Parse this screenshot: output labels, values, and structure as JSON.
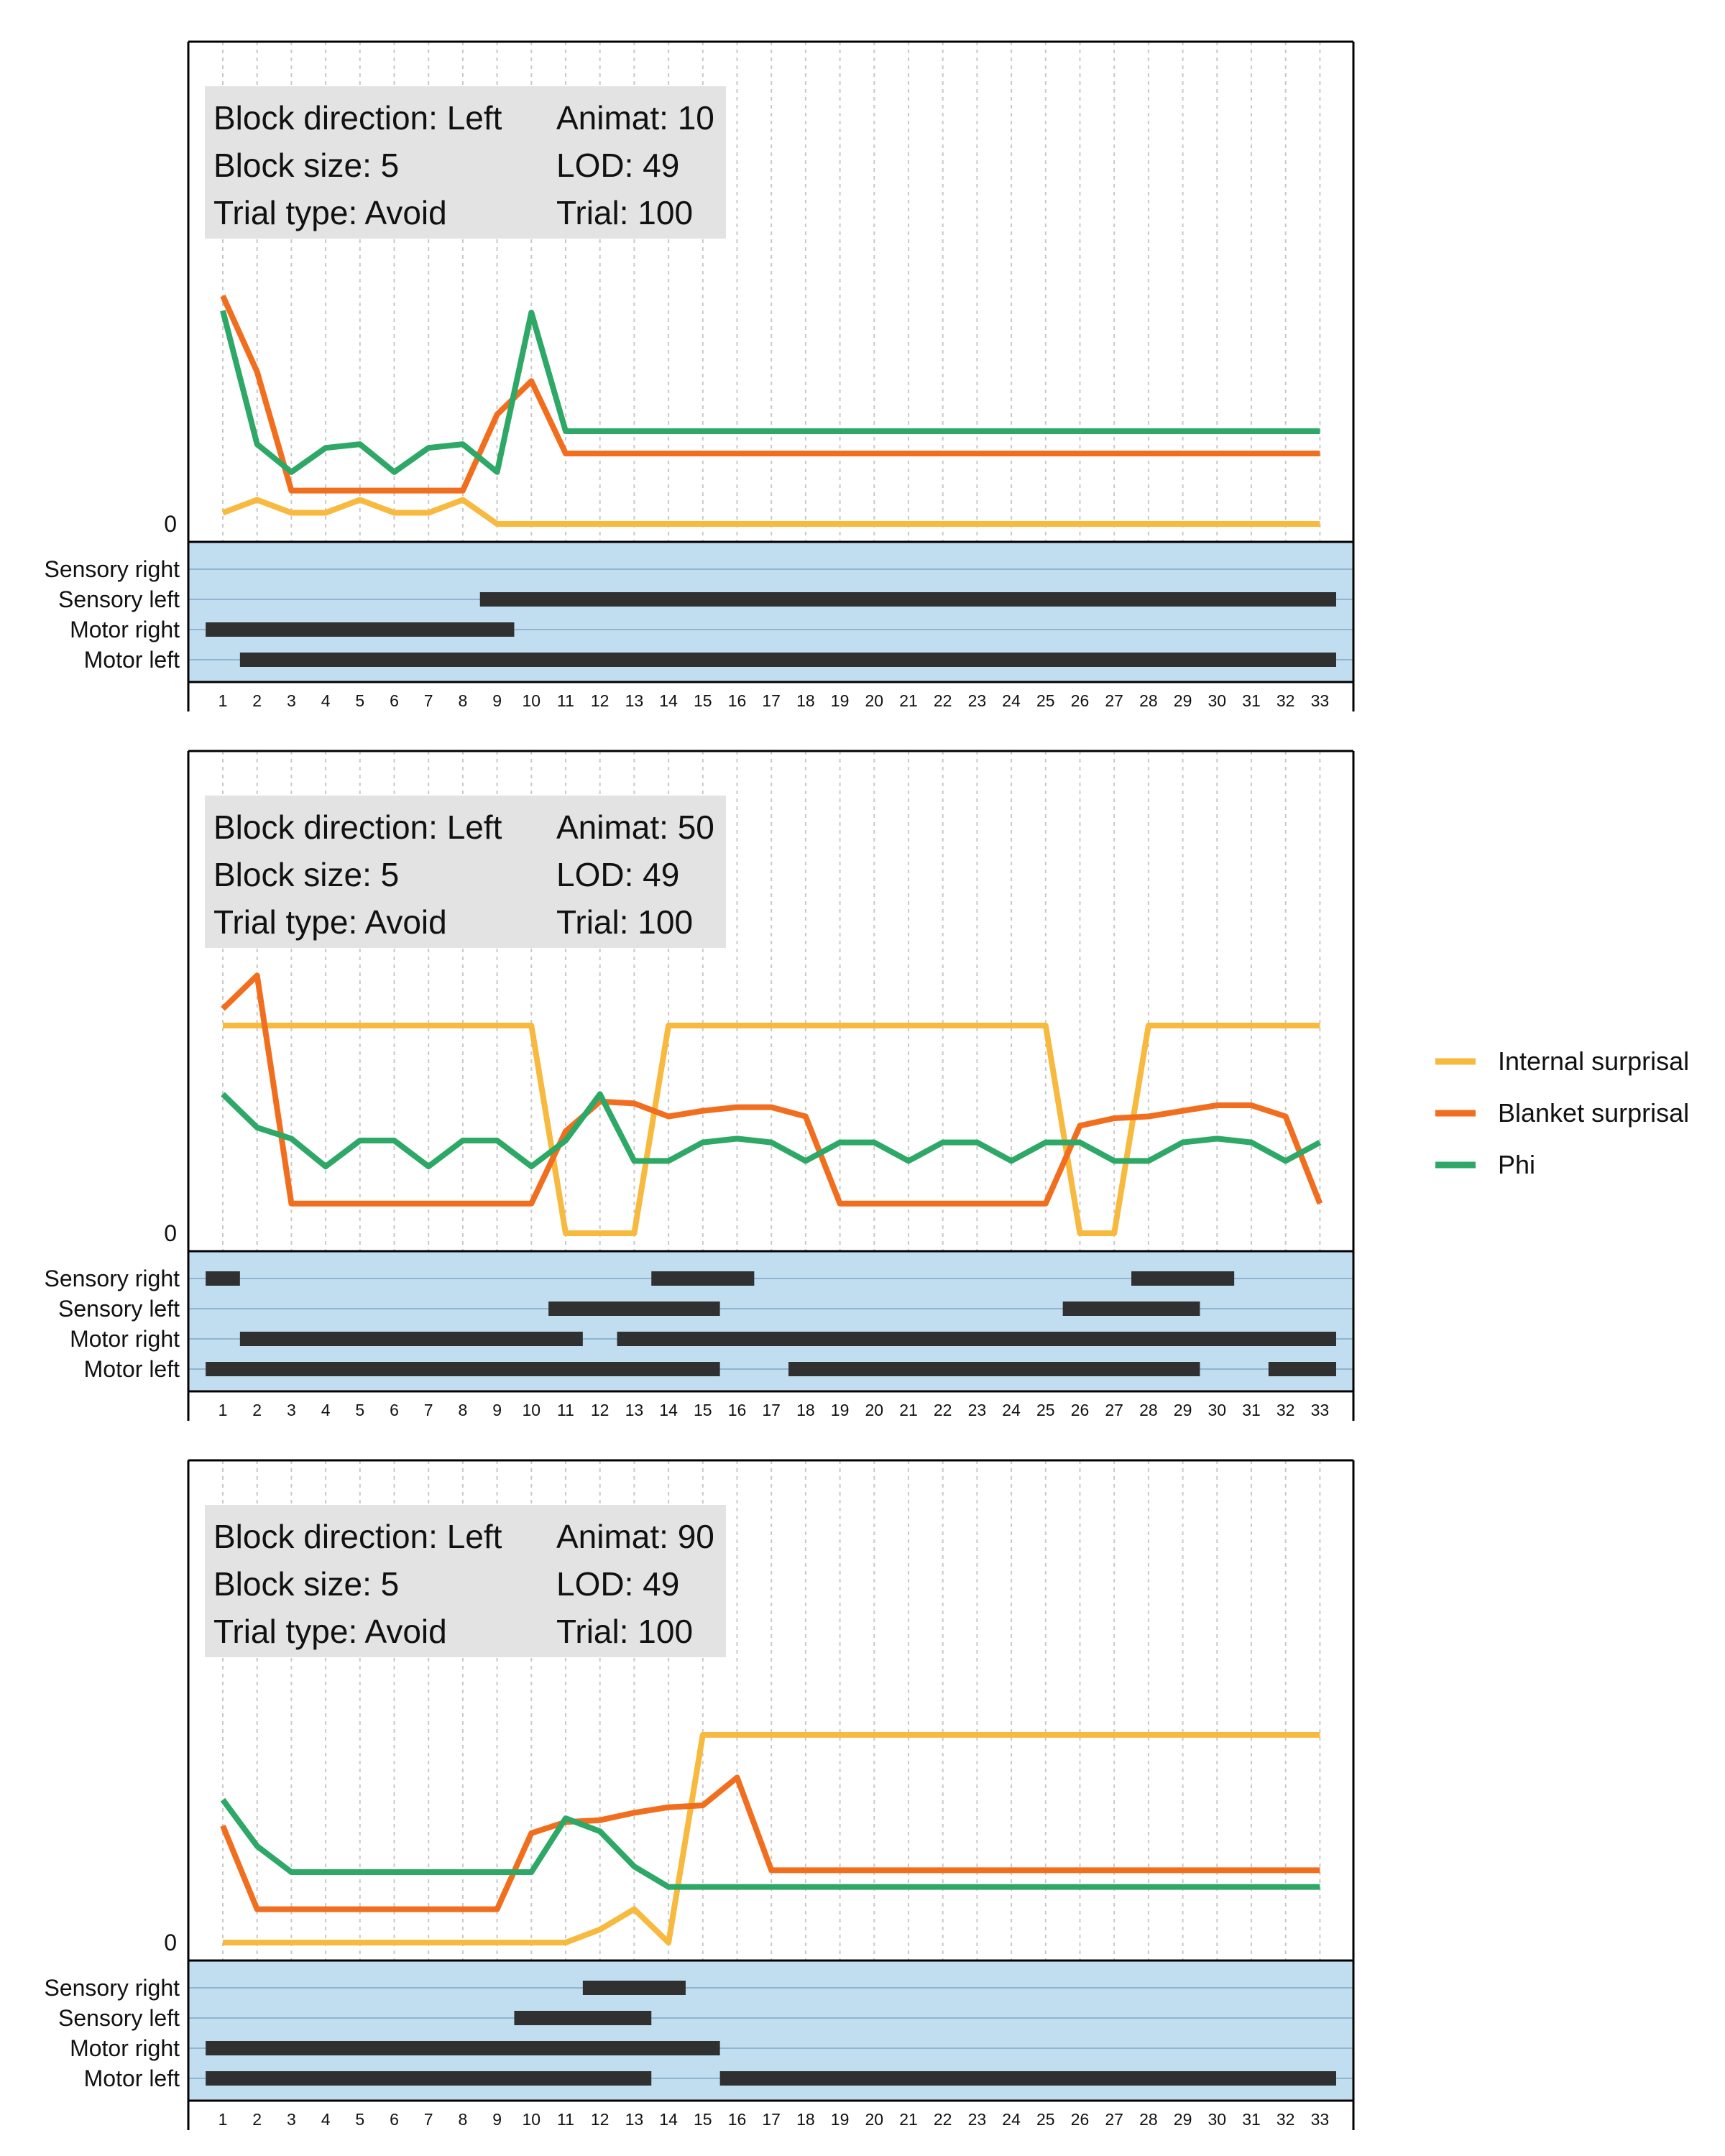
{
  "colors": {
    "internal": "#F7B93E",
    "blanket": "#F26E1F",
    "phi": "#2EA867",
    "raster_bg": "#C1DDF0",
    "bar": "#303030",
    "info_bg": "#E3E3E3"
  },
  "legend": [
    {
      "label": "Internal surprisal",
      "color": "#F7B93E"
    },
    {
      "label": "Blanket surprisal",
      "color": "#F26E1F"
    },
    {
      "label": "Phi",
      "color": "#2EA867"
    }
  ],
  "chart_data": [
    {
      "type": "line",
      "x": [
        1,
        2,
        3,
        4,
        5,
        6,
        7,
        8,
        9,
        10,
        11,
        12,
        13,
        14,
        15,
        16,
        17,
        18,
        19,
        20,
        21,
        22,
        23,
        24,
        25,
        26,
        27,
        28,
        29,
        30,
        31,
        32,
        33
      ],
      "ytick": "0",
      "ylim": [
        -0.5,
        24.5
      ],
      "info": {
        "left": [
          "Block direction: Left",
          "Block size: 5",
          "Trial type: Avoid"
        ],
        "right": [
          "Animat: 10",
          "LOD: 49",
          "Trial: 100"
        ]
      },
      "series": [
        {
          "name": "Internal surprisal",
          "color": "#F7B93E",
          "values": [
            0.6,
            1.3,
            0.6,
            0.6,
            1.3,
            0.6,
            0.6,
            1.3,
            0,
            0,
            0,
            0,
            0,
            0,
            0,
            0,
            0,
            0,
            0,
            0,
            0,
            0,
            0,
            0,
            0,
            0,
            0,
            0,
            0,
            0,
            0,
            0,
            0
          ]
        },
        {
          "name": "Blanket surprisal",
          "color": "#F26E1F",
          "values": [
            12.3,
            8.2,
            1.8,
            1.8,
            1.8,
            1.8,
            1.8,
            1.8,
            5.9,
            7.7,
            3.8,
            3.8,
            3.8,
            3.8,
            3.8,
            3.8,
            3.8,
            3.8,
            3.8,
            3.8,
            3.8,
            3.8,
            3.8,
            3.8,
            3.8,
            3.8,
            3.8,
            3.8,
            3.8,
            3.8,
            3.8,
            3.8,
            3.8
          ]
        },
        {
          "name": "Phi",
          "color": "#2EA867",
          "values": [
            11.5,
            4.3,
            2.8,
            4.1,
            4.3,
            2.8,
            4.1,
            4.3,
            2.8,
            11.4,
            5,
            5,
            5,
            5,
            5,
            5,
            5,
            5,
            5,
            5,
            5,
            5,
            5,
            5,
            5,
            5,
            5,
            5,
            5,
            5,
            5,
            5,
            5
          ]
        }
      ],
      "raster": {
        "rows": [
          "Sensory right",
          "Sensory left",
          "Motor right",
          "Motor left"
        ],
        "bars": [
          [],
          [
            [
              9,
              33
            ]
          ],
          [
            [
              1,
              9
            ]
          ],
          [
            [
              2,
              33
            ]
          ]
        ]
      }
    },
    {
      "type": "line",
      "x": [
        1,
        2,
        3,
        4,
        5,
        6,
        7,
        8,
        9,
        10,
        11,
        12,
        13,
        14,
        15,
        16,
        17,
        18,
        19,
        20,
        21,
        22,
        23,
        24,
        25,
        26,
        27,
        28,
        29,
        30,
        31,
        32,
        33
      ],
      "ytick": "0",
      "ylim": [
        -0.5,
        24.5
      ],
      "info": {
        "left": [
          "Block direction: Left",
          "Block size: 5",
          "Trial type: Avoid"
        ],
        "right": [
          "Animat: 50",
          "LOD: 49",
          "Trial: 100"
        ]
      },
      "series": [
        {
          "name": "Internal surprisal",
          "color": "#F7B93E",
          "values": [
            11.2,
            11.2,
            11.2,
            11.2,
            11.2,
            11.2,
            11.2,
            11.2,
            11.2,
            11.2,
            0,
            0,
            0,
            11.2,
            11.2,
            11.2,
            11.2,
            11.2,
            11.2,
            11.2,
            11.2,
            11.2,
            11.2,
            11.2,
            11.2,
            0,
            0,
            11.2,
            11.2,
            11.2,
            11.2,
            11.2,
            11.2
          ]
        },
        {
          "name": "Blanket surprisal",
          "color": "#F26E1F",
          "values": [
            12.1,
            13.9,
            1.6,
            1.6,
            1.6,
            1.6,
            1.6,
            1.6,
            1.6,
            1.6,
            5.5,
            7.1,
            7.0,
            6.3,
            6.6,
            6.8,
            6.8,
            6.3,
            1.6,
            1.6,
            1.6,
            1.6,
            1.6,
            1.6,
            1.6,
            5.8,
            6.2,
            6.3,
            6.6,
            6.9,
            6.9,
            6.3,
            1.6
          ]
        },
        {
          "name": "Phi",
          "color": "#2EA867",
          "values": [
            7.5,
            5.7,
            5.1,
            3.6,
            5.0,
            5.0,
            3.6,
            5.0,
            5.0,
            3.6,
            5.0,
            7.5,
            3.9,
            3.9,
            4.9,
            5.1,
            4.9,
            3.9,
            4.9,
            4.9,
            3.9,
            4.9,
            4.9,
            3.9,
            4.9,
            4.9,
            3.9,
            3.9,
            4.9,
            5.1,
            4.9,
            3.9,
            4.9
          ]
        }
      ],
      "raster": {
        "rows": [
          "Sensory right",
          "Sensory left",
          "Motor right",
          "Motor left"
        ],
        "bars": [
          [
            [
              1,
              1
            ],
            [
              14,
              16
            ],
            [
              28,
              30
            ]
          ],
          [
            [
              11,
              15
            ],
            [
              26,
              29
            ]
          ],
          [
            [
              2,
              11
            ],
            [
              13,
              33
            ]
          ],
          [
            [
              1,
              15
            ],
            [
              18,
              29
            ],
            [
              32,
              33
            ]
          ]
        ]
      }
    },
    {
      "type": "line",
      "x": [
        1,
        2,
        3,
        4,
        5,
        6,
        7,
        8,
        9,
        10,
        11,
        12,
        13,
        14,
        15,
        16,
        17,
        18,
        19,
        20,
        21,
        22,
        23,
        24,
        25,
        26,
        27,
        28,
        29,
        30,
        31,
        32,
        33
      ],
      "ytick": "0",
      "ylim": [
        -0.5,
        24.5
      ],
      "info": {
        "left": [
          "Block direction: Left",
          "Block size: 5",
          "Trial type: Avoid"
        ],
        "right": [
          "Animat: 90",
          "LOD: 49",
          "Trial: 100"
        ]
      },
      "series": [
        {
          "name": "Internal surprisal",
          "color": "#F7B93E",
          "values": [
            0,
            0,
            0,
            0,
            0,
            0,
            0,
            0,
            0,
            0,
            0,
            0.7,
            1.8,
            0,
            11.2,
            11.2,
            11.2,
            11.2,
            11.2,
            11.2,
            11.2,
            11.2,
            11.2,
            11.2,
            11.2,
            11.2,
            11.2,
            11.2,
            11.2,
            11.2,
            11.2,
            11.2,
            11.2
          ]
        },
        {
          "name": "Blanket surprisal",
          "color": "#F26E1F",
          "values": [
            6.3,
            1.8,
            1.8,
            1.8,
            1.8,
            1.8,
            1.8,
            1.8,
            1.8,
            5.9,
            6.5,
            6.6,
            7.0,
            7.3,
            7.4,
            8.9,
            3.9,
            3.9,
            3.9,
            3.9,
            3.9,
            3.9,
            3.9,
            3.9,
            3.9,
            3.9,
            3.9,
            3.9,
            3.9,
            3.9,
            3.9,
            3.9,
            3.9
          ]
        },
        {
          "name": "Phi",
          "color": "#2EA867",
          "values": [
            7.7,
            5.2,
            3.8,
            3.8,
            3.8,
            3.8,
            3.8,
            3.8,
            3.8,
            3.8,
            6.7,
            6.0,
            4.1,
            3.0,
            3.0,
            3.0,
            3.0,
            3.0,
            3.0,
            3.0,
            3.0,
            3.0,
            3.0,
            3.0,
            3.0,
            3.0,
            3.0,
            3.0,
            3.0,
            3.0,
            3.0,
            3.0,
            3.0
          ]
        }
      ],
      "raster": {
        "rows": [
          "Sensory right",
          "Sensory left",
          "Motor right",
          "Motor left"
        ],
        "bars": [
          [
            [
              12,
              14
            ]
          ],
          [
            [
              10,
              13
            ]
          ],
          [
            [
              1,
              15
            ]
          ],
          [
            [
              1,
              13
            ],
            [
              16,
              33
            ]
          ]
        ]
      }
    }
  ]
}
